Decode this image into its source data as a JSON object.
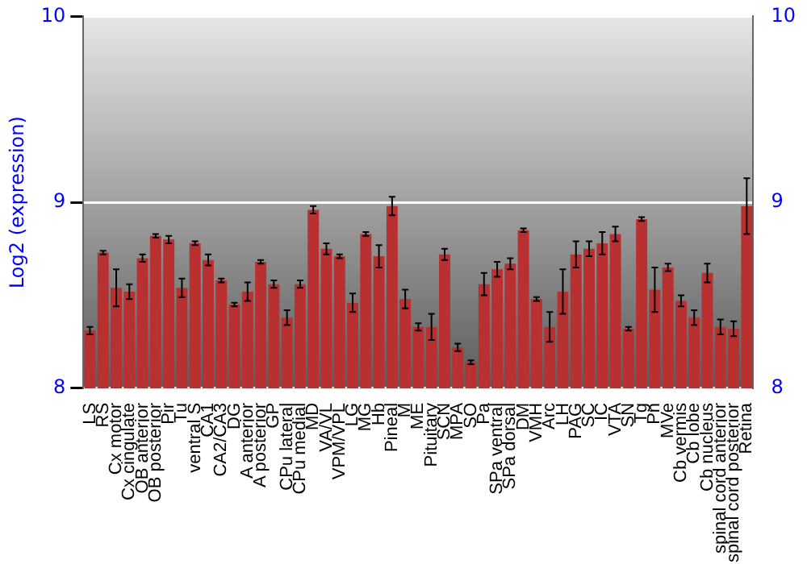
{
  "chart_data": {
    "type": "bar",
    "ylabel": "Log2 (expression)",
    "categories": [
      "LS",
      "RS",
      "Cx motor",
      "Cx cingulate",
      "OB anterior",
      "OB posterior",
      "Pir",
      "Tu",
      "ventral S",
      "CA1",
      "CA2/CA3",
      "DG",
      "A anterior",
      "A posterior",
      "GP",
      "CPu lateral",
      "CPu medial",
      "MD",
      "VA/VL",
      "VPM/VPL",
      "LG",
      "MG",
      "Hb",
      "Pineal",
      "M",
      "ME",
      "Pituitary",
      "SCN",
      "MPA",
      "SO",
      "Pa",
      "SPa ventral",
      "SPa dorsal",
      "DM",
      "VMH",
      "Arc",
      "LH",
      "PAG",
      "SC",
      "IC",
      "VTA",
      "SN",
      "Tg",
      "Pn",
      "MVe",
      "Cb vermis",
      "Cb lobe",
      "Cb nucleus",
      "spinal cord anterior",
      "spinal cord posterior",
      "Retina"
    ],
    "values": [
      8.31,
      8.73,
      8.54,
      8.52,
      8.7,
      8.82,
      8.8,
      8.54,
      8.78,
      8.69,
      8.58,
      8.45,
      8.52,
      8.68,
      8.56,
      8.38,
      8.56,
      8.96,
      8.75,
      8.71,
      8.46,
      8.83,
      8.71,
      8.98,
      8.48,
      8.33,
      8.33,
      8.72,
      8.22,
      8.14,
      8.56,
      8.64,
      8.67,
      8.85,
      8.48,
      8.33,
      8.52,
      8.72,
      8.75,
      8.78,
      8.83,
      8.32,
      8.91,
      8.53,
      8.65,
      8.47,
      8.38,
      8.62,
      8.33,
      8.32,
      8.98
    ],
    "errors": [
      0.02,
      0.01,
      0.1,
      0.04,
      0.02,
      0.01,
      0.02,
      0.05,
      0.01,
      0.03,
      0.01,
      0.01,
      0.05,
      0.01,
      0.02,
      0.04,
      0.02,
      0.02,
      0.03,
      0.01,
      0.05,
      0.01,
      0.06,
      0.05,
      0.05,
      0.02,
      0.07,
      0.03,
      0.02,
      0.01,
      0.06,
      0.04,
      0.03,
      0.01,
      0.01,
      0.08,
      0.12,
      0.07,
      0.04,
      0.06,
      0.04,
      0.01,
      0.01,
      0.12,
      0.02,
      0.03,
      0.04,
      0.05,
      0.04,
      0.04,
      0.15
    ],
    "color": "#b83030",
    "ylim": [
      8,
      10
    ],
    "yticks": [
      8,
      9,
      10
    ],
    "y2lim": [
      8,
      10
    ],
    "y2ticks": [
      8,
      9,
      10
    ],
    "grid": "y",
    "legend": false
  }
}
